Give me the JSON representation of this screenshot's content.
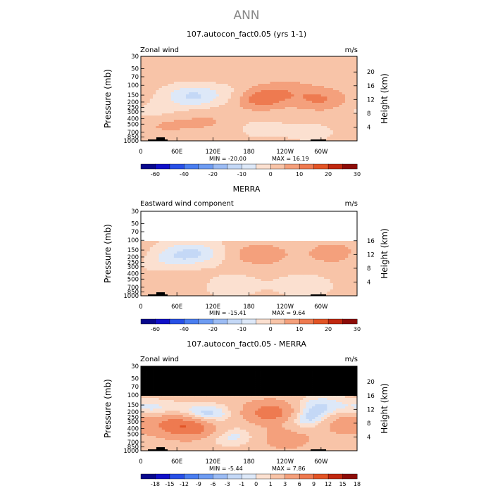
{
  "page_title": "ANN",
  "colors": {
    "black": "#000000",
    "scale1": [
      "#08088c",
      "#1010c8",
      "#2850e6",
      "#4a7ef0",
      "#6e9cf2",
      "#9cbcf4",
      "#c4d8f6",
      "#dde8f8",
      "#fbe0d0",
      "#f8c4a8",
      "#f4a07c",
      "#ee7a50",
      "#e25426",
      "#c02810",
      "#8c0c08"
    ]
  },
  "chart_data": [
    {
      "type": "heatmap",
      "title": "107.autocon_fact0.05 (yrs 1-1)",
      "top_left_label": "Zonal wind",
      "top_right_label": "m/s",
      "ylabel": "Pressure (mb)",
      "y2label": "Height (km)",
      "xticks": [
        "0",
        "60E",
        "120E",
        "180",
        "120W",
        "60W"
      ],
      "xtick_lon": [
        0,
        60,
        120,
        180,
        240,
        300
      ],
      "xlim": [
        0,
        360
      ],
      "yticks": [
        "30",
        "50",
        "70",
        "100",
        "150",
        "200",
        "250",
        "300",
        "400",
        "500",
        "700",
        "850",
        "1000"
      ],
      "ytick_p": [
        30,
        50,
        70,
        100,
        150,
        200,
        250,
        300,
        400,
        500,
        700,
        850,
        1000
      ],
      "ylim": [
        1000,
        30
      ],
      "height_ticks": [
        "4",
        "8",
        "12",
        "16",
        "20"
      ],
      "height_km": [
        4,
        8,
        12,
        16,
        20
      ],
      "min_label": "MIN = -20.00",
      "max_label": "MAX = 16.19",
      "colorbar_labels": [
        "-60",
        "-40",
        "-20",
        "-10",
        "0",
        "10",
        "20",
        "30"
      ],
      "colorbar_levels": [
        -70,
        -60,
        -50,
        -40,
        -30,
        -20,
        -15,
        -10,
        -5,
        0,
        5,
        10,
        15,
        20,
        25,
        30
      ],
      "features": [
        {
          "lon": 85,
          "p": 155,
          "value": -12
        },
        {
          "lon": 160,
          "p": 150,
          "value": -5
        },
        {
          "lon": 195,
          "p": 170,
          "value": 14
        },
        {
          "lon": 300,
          "p": 180,
          "value": 9
        },
        {
          "lon": 245,
          "p": 120,
          "value": 5
        },
        {
          "lon": 40,
          "p": 480,
          "value": 5
        },
        {
          "lon": 110,
          "p": 450,
          "value": 4
        },
        {
          "lon": 25,
          "p": 300,
          "value": -4
        },
        {
          "lon": 200,
          "p": 600,
          "value": -3
        },
        {
          "lon": 285,
          "p": 700,
          "value": -3
        }
      ],
      "background_value": 2
    },
    {
      "type": "heatmap",
      "title": "MERRA",
      "top_left_label": "Eastward wind component",
      "top_right_label": "m/s",
      "ylabel": "Pressure (mb)",
      "y2label": "Height (km)",
      "xticks": [
        "0",
        "60E",
        "120E",
        "180",
        "120W",
        "60W"
      ],
      "xtick_lon": [
        0,
        60,
        120,
        180,
        240,
        300
      ],
      "xlim": [
        0,
        360
      ],
      "yticks": [
        "30",
        "50",
        "70",
        "100",
        "150",
        "200",
        "250",
        "300",
        "400",
        "500",
        "700",
        "850",
        "1000"
      ],
      "ytick_p": [
        30,
        50,
        70,
        100,
        150,
        200,
        250,
        300,
        400,
        500,
        700,
        850,
        1000
      ],
      "ylim": [
        1000,
        30
      ],
      "height_ticks": [
        "4",
        "8",
        "12",
        "16"
      ],
      "height_km": [
        4,
        8,
        12,
        16
      ],
      "min_label": "MIN = -15.41",
      "max_label": "MAX = 9.64",
      "colorbar_labels": [
        "-60",
        "-40",
        "-20",
        "-10",
        "0",
        "10",
        "20",
        "30"
      ],
      "colorbar_levels": [
        -70,
        -60,
        -50,
        -40,
        -30,
        -20,
        -15,
        -10,
        -5,
        0,
        5,
        10,
        15,
        20,
        25,
        30
      ],
      "features": [
        {
          "lon": 85,
          "p": 170,
          "value": -11
        },
        {
          "lon": 40,
          "p": 220,
          "value": -5
        },
        {
          "lon": 200,
          "p": 180,
          "value": 9
        },
        {
          "lon": 320,
          "p": 170,
          "value": 8
        },
        {
          "lon": 60,
          "p": 500,
          "value": 3
        },
        {
          "lon": 150,
          "p": 650,
          "value": -3
        },
        {
          "lon": 270,
          "p": 650,
          "value": -3
        }
      ],
      "background_value": 1,
      "missing_above_p": 100
    },
    {
      "type": "heatmap",
      "title": "107.autocon_fact0.05 - MERRA",
      "top_left_label": "Zonal wind",
      "top_right_label": "m/s",
      "ylabel": "Pressure (mb)",
      "y2label": "Height (km)",
      "xticks": [
        "0",
        "60E",
        "120E",
        "180",
        "120W",
        "60W"
      ],
      "xtick_lon": [
        0,
        60,
        120,
        180,
        240,
        300
      ],
      "xlim": [
        0,
        360
      ],
      "yticks": [
        "30",
        "50",
        "70",
        "100",
        "150",
        "200",
        "250",
        "300",
        "400",
        "500",
        "700",
        "850",
        "1000"
      ],
      "ytick_p": [
        30,
        50,
        70,
        100,
        150,
        200,
        250,
        300,
        400,
        500,
        700,
        850,
        1000
      ],
      "ylim": [
        1000,
        30
      ],
      "height_ticks": [
        "4",
        "8",
        "12",
        "16",
        "20"
      ],
      "height_km": [
        4,
        8,
        12,
        16,
        20
      ],
      "min_label": "MIN = -5.44",
      "max_label": "MAX = 7.86",
      "colorbar_labels": [
        "-18",
        "-15",
        "-12",
        "-9",
        "-6",
        "-3",
        "-1",
        "0",
        "1",
        "3",
        "6",
        "9",
        "12",
        "15",
        "18"
      ],
      "colorbar_levels": [
        -21,
        -18,
        -15,
        -12,
        -9,
        -6,
        -3,
        -1,
        0,
        1,
        3,
        6,
        9,
        12,
        15,
        18
      ],
      "features": [
        {
          "lon": 105,
          "p": 230,
          "value": -4
        },
        {
          "lon": 220,
          "p": 210,
          "value": 7
        },
        {
          "lon": 280,
          "p": 260,
          "value": -4
        },
        {
          "lon": 55,
          "p": 320,
          "value": 5
        },
        {
          "lon": 90,
          "p": 380,
          "value": 6
        },
        {
          "lon": 330,
          "p": 300,
          "value": 4
        },
        {
          "lon": 20,
          "p": 180,
          "value": -2
        },
        {
          "lon": 300,
          "p": 150,
          "value": -2
        },
        {
          "lon": 150,
          "p": 550,
          "value": -2
        },
        {
          "lon": 240,
          "p": 600,
          "value": 3
        }
      ],
      "background_value": 2,
      "missing_above_p": 100
    }
  ]
}
